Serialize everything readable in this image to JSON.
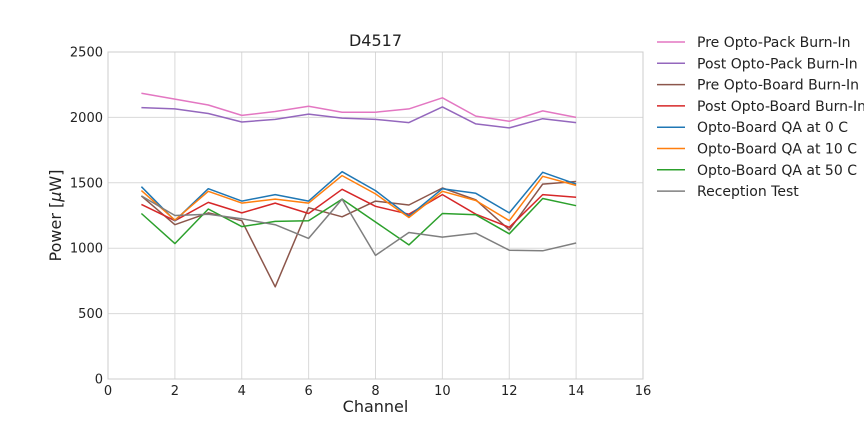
{
  "chart_data": {
    "type": "line",
    "title": "D4517",
    "xlabel": "Channel",
    "ylabel_prefix": "Power [",
    "ylabel_mu": "μ",
    "ylabel_suffix": "W]",
    "xlim": [
      0,
      16
    ],
    "ylim": [
      0,
      2500
    ],
    "xticks": [
      0,
      2,
      4,
      6,
      8,
      10,
      12,
      14,
      16
    ],
    "yticks": [
      0,
      500,
      1000,
      1500,
      2000,
      2500
    ],
    "grid": true,
    "legend_position": "outside-right",
    "x": [
      1,
      2,
      3,
      4,
      5,
      6,
      7,
      8,
      9,
      10,
      11,
      12,
      13,
      14
    ],
    "series": [
      {
        "name": "Pre Opto-Pack Burn-In",
        "color": "#e377c2",
        "values": [
          2185,
          2140,
          2095,
          2015,
          2045,
          2085,
          2040,
          2040,
          2065,
          2150,
          2010,
          1970,
          2050,
          2000
        ]
      },
      {
        "name": "Post Opto-Pack Burn-In",
        "color": "#9467bd",
        "values": [
          2075,
          2065,
          2030,
          1965,
          1985,
          2025,
          1995,
          1985,
          1960,
          2080,
          1950,
          1920,
          1990,
          1960
        ]
      },
      {
        "name": "Pre Opto-Board Burn-In",
        "color": "#8c564b",
        "values": [
          1400,
          1180,
          1270,
          1210,
          705,
          1310,
          1240,
          1360,
          1330,
          1460,
          1370,
          1140,
          1490,
          1510
        ]
      },
      {
        "name": "Post Opto-Board Burn-In",
        "color": "#d62728",
        "values": [
          1335,
          1210,
          1350,
          1270,
          1345,
          1265,
          1450,
          1320,
          1260,
          1410,
          1260,
          1160,
          1410,
          1390
        ]
      },
      {
        "name": "Opto-Board QA at 0 C",
        "color": "#1f77b4",
        "values": [
          1470,
          1210,
          1455,
          1360,
          1410,
          1360,
          1585,
          1440,
          1245,
          1455,
          1420,
          1270,
          1580,
          1490
        ]
      },
      {
        "name": "Opto-Board QA at 10 C",
        "color": "#ff7f0e",
        "values": [
          1440,
          1215,
          1435,
          1345,
          1375,
          1345,
          1555,
          1415,
          1235,
          1435,
          1365,
          1210,
          1550,
          1480
        ]
      },
      {
        "name": "Opto-Board QA at 50 C",
        "color": "#2ca02c",
        "values": [
          1265,
          1035,
          1300,
          1165,
          1205,
          1210,
          1375,
          1200,
          1025,
          1265,
          1255,
          1110,
          1380,
          1325
        ]
      },
      {
        "name": "Reception Test",
        "color": "#7f7f7f",
        "values": [
          1400,
          1250,
          1260,
          1225,
          1180,
          1075,
          1375,
          945,
          1120,
          1085,
          1115,
          985,
          980,
          1040
        ]
      }
    ]
  }
}
